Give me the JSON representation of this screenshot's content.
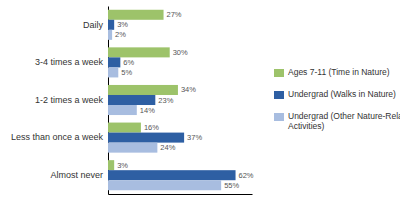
{
  "chart_data": {
    "type": "bar",
    "orientation": "horizontal",
    "categories": [
      "Almost never",
      "Less than once a week",
      "1-2 times a week",
      "3-4 times a week",
      "Daily"
    ],
    "series": [
      {
        "name": "Ages 7-11 (Time in Nature)",
        "color": "#9DC36A",
        "values": [
          3,
          16,
          34,
          30,
          27
        ],
        "value_labels": [
          "3%",
          "16%",
          "34%",
          "30%",
          "27%"
        ]
      },
      {
        "name": "Undergrad (Walks in Nature)",
        "color": "#2E5FA3",
        "values": [
          62,
          37,
          23,
          6,
          3
        ],
        "value_labels": [
          "62%",
          "37%",
          "23%",
          "6%",
          "3%"
        ]
      },
      {
        "name": "Undergrad (Other Nature-Related\nActivities)",
        "color": "#A8BDE0",
        "values": [
          55,
          24,
          14,
          5,
          2
        ],
        "value_labels": [
          "55%",
          "24%",
          "14%",
          "5%",
          "2%"
        ]
      }
    ],
    "xlim": [
      0,
      70
    ],
    "grid": false,
    "legend": "right",
    "data_labels": true,
    "tick_labels": "y"
  }
}
